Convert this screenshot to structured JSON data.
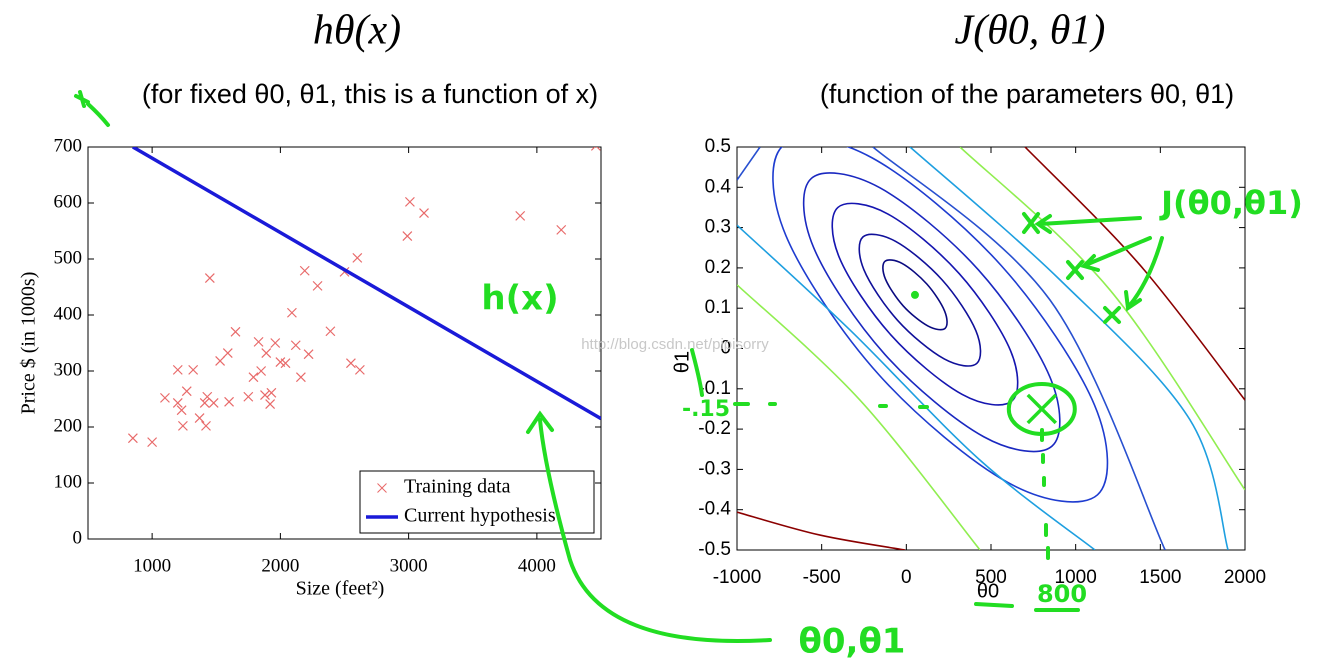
{
  "chart_data": [
    {
      "type": "scatter",
      "title": "hθ(x)",
      "subtitle": "(for fixed θ0, θ1, this is a function of x)",
      "x_label": "Size (feet²)",
      "y_label": "Price $ (in 1000s)",
      "xlim": [
        500,
        4500
      ],
      "xticks": [
        1000,
        2000,
        3000,
        4000
      ],
      "ylim": [
        0,
        700
      ],
      "yticks": [
        0,
        100,
        200,
        300,
        400,
        500,
        600,
        700
      ],
      "grid": false,
      "legend": "lower right",
      "series": [
        {
          "name": "Training data",
          "color": "#e86a6a",
          "mode": "markers",
          "x": [
            850,
            1000,
            1100,
            1200,
            1200,
            1230,
            1240,
            1270,
            1320,
            1370,
            1410,
            1420,
            1430,
            1450,
            1480,
            1530,
            1590,
            1600,
            1650,
            1750,
            1790,
            1830,
            1850,
            1880,
            1890,
            1920,
            1930,
            1960,
            2000,
            2040,
            2090,
            2120,
            2160,
            2190,
            2220,
            2290,
            2390,
            2500,
            2550,
            2600,
            2620,
            2990,
            3010,
            3120,
            3870,
            4190,
            4460
          ],
          "values": [
            180,
            173,
            252,
            302,
            243,
            230,
            202,
            264,
            302,
            216,
            243,
            202,
            254,
            466,
            243,
            318,
            332,
            245,
            370,
            254,
            289,
            352,
            300,
            257,
            332,
            241,
            261,
            350,
            316,
            314,
            404,
            346,
            289,
            479,
            330,
            452,
            371,
            477,
            314,
            502,
            302,
            541,
            602,
            582,
            577,
            552,
            702
          ]
        },
        {
          "name": "Current hypothesis",
          "color": "#1a1ad8",
          "mode": "line",
          "x": [
            850,
            4500
          ],
          "values": [
            700,
            215
          ]
        }
      ]
    },
    {
      "type": "contour",
      "title": "J(θ0, θ1)",
      "subtitle": "(function of the parameters θ0, θ1)",
      "x_label": "θ0",
      "y_label": "θ1",
      "xlim": [
        -1000,
        2000
      ],
      "xticks": [
        -1000,
        -500,
        0,
        500,
        1000,
        1500,
        2000
      ],
      "ylim": [
        -0.5,
        0.5
      ],
      "yticks": [
        -0.5,
        -0.4,
        -0.3,
        -0.2,
        -0.1,
        0,
        0.1,
        0.2,
        0.3,
        0.4,
        0.5
      ],
      "grid": false,
      "minimum": {
        "x": 51,
        "y": 0.133,
        "color": "#22dd22"
      },
      "highlight": {
        "x": 800,
        "y": -0.15,
        "color": "#22dd22"
      },
      "series": [
        {
          "color": "#0a0a80",
          "closed": true,
          "x": [
            229,
            127,
            -19,
            -124,
            -127,
            -25,
            121,
            226
          ],
          "y": [
            0.05,
            0.056,
            0.106,
            0.173,
            0.216,
            0.211,
            0.16,
            0.093
          ]
        },
        {
          "color": "#10109a",
          "closed": true,
          "x": [
            416,
            224,
            -52,
            -251,
            -256,
            -64,
            212,
            411
          ],
          "y": [
            -0.037,
            -0.026,
            0.07,
            0.196,
            0.277,
            0.266,
            0.17,
            0.044
          ]
        },
        {
          "color": "#1515b0",
          "closed": true,
          "x": [
            624,
            330,
            -92,
            -396,
            -404,
            -110,
            312,
            616
          ],
          "y": [
            -0.13,
            -0.114,
            0.034,
            0.226,
            0.35,
            0.334,
            0.186,
            -0.006
          ]
        },
        {
          "color": "#1a28c0",
          "closed": true,
          "x": [
            861,
            457,
            -126,
            -548,
            -561,
            -157,
            426,
            848
          ],
          "y": [
            -0.242,
            -0.219,
            -0.015,
            0.251,
            0.422,
            0.399,
            0.195,
            -0.071
          ]
        },
        {
          "color": "#1e3cd0",
          "closed": true,
          "x": [
            1129,
            602,
            -160,
            -711,
            -729,
            -202,
            560,
            1111
          ],
          "y": [
            -0.363,
            -0.333,
            -0.066,
            0.28,
            0.503,
            0.473,
            0.206,
            -0.14
          ]
        },
        {
          "color": "#2850d0",
          "closed": false,
          "x": [
            -197,
            849,
            1528
          ],
          "y": [
            0.5,
            0.12,
            -0.5
          ]
        },
        {
          "color": "#2850d0",
          "closed": false,
          "x": [
            -1000,
            -864
          ],
          "y": [
            0.418,
            0.5
          ]
        },
        {
          "color": "#1e9fe0",
          "closed": false,
          "x": [
            22,
            908,
            1675,
            1900
          ],
          "y": [
            0.5,
            0.17,
            -0.177,
            -0.5
          ]
        },
        {
          "color": "#1e9fe0",
          "closed": false,
          "x": [
            -1000,
            -333,
            435,
            1114
          ],
          "y": [
            0.306,
            0.046,
            -0.277,
            -0.5
          ]
        },
        {
          "color": "#90ee50",
          "closed": false,
          "x": [
            317,
            1203,
            2000
          ],
          "y": [
            0.5,
            0.145,
            -0.351
          ]
        },
        {
          "color": "#90ee50",
          "closed": false,
          "x": [
            -1000,
            -274,
            435
          ],
          "y": [
            0.158,
            -0.128,
            -0.5
          ]
        },
        {
          "color": "#8b0000",
          "closed": false,
          "x": [
            701,
            1380,
            2000
          ],
          "y": [
            0.5,
            0.207,
            -0.128
          ]
        },
        {
          "color": "#8b0000",
          "closed": false,
          "x": [
            -1000,
            -510,
            -8
          ],
          "y": [
            -0.406,
            -0.463,
            -0.5
          ]
        }
      ]
    }
  ],
  "annotations": [
    "h(x)",
    "J(θ0,θ1)",
    "θ0,θ1",
    "-.15",
    "800"
  ],
  "watermark": "http://blog.csdn.net/pipisorry"
}
